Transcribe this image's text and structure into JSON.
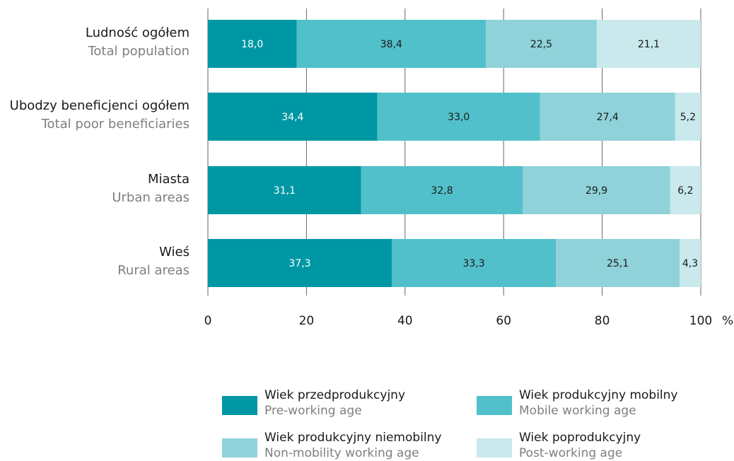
{
  "chart_data": {
    "type": "bar",
    "orientation": "horizontal",
    "stacked": true,
    "categories": [
      {
        "main": "Ludność ogółem",
        "sub": "Total population"
      },
      {
        "main": "Ubodzy beneficjenci ogółem",
        "sub": "Total poor beneficiaries"
      },
      {
        "main": "Miasta",
        "sub": "Urban areas"
      },
      {
        "main": "Wieś",
        "sub": "Rural areas"
      }
    ],
    "series": [
      {
        "name": "Wiek przedprodukcyjny",
        "name_en": "Pre-working age",
        "color": "#0097a4",
        "label_color": "#ffffff",
        "values": [
          18.0,
          34.4,
          31.1,
          37.3
        ],
        "labels": [
          "18,0",
          "34,4",
          "31,1",
          "37,3"
        ]
      },
      {
        "name": "Wiek produkcyjny mobilny",
        "name_en": "Mobile working age",
        "color": "#52c0ca",
        "label_color": "#1a1a1a",
        "values": [
          38.4,
          33.0,
          32.8,
          33.3
        ],
        "labels": [
          "38,4",
          "33,0",
          "32,8",
          "33,3"
        ]
      },
      {
        "name": "Wiek produkcyjny niemobilny",
        "name_en": "Non-mobility working age",
        "color": "#8fd2d9",
        "label_color": "#1a1a1a",
        "values": [
          22.5,
          27.4,
          29.9,
          25.1
        ],
        "labels": [
          "22,5",
          "27,4",
          "29,9",
          "25,1"
        ]
      },
      {
        "name": "Wiek poprodukcyjny",
        "name_en": "Post-working age",
        "color": "#c9e9ec",
        "label_color": "#1a1a1a",
        "values": [
          21.1,
          5.2,
          6.2,
          4.3
        ],
        "labels": [
          "21,1",
          "5,2",
          "6,2",
          "4,3"
        ]
      }
    ],
    "xlim": [
      0,
      100
    ],
    "xticks": [
      0,
      20,
      40,
      60,
      80,
      100
    ],
    "xtick_labels": [
      "0",
      "20",
      "40",
      "60",
      "80",
      "100"
    ],
    "xunit": "%",
    "grid": "vertical",
    "legend_position": "bottom"
  }
}
